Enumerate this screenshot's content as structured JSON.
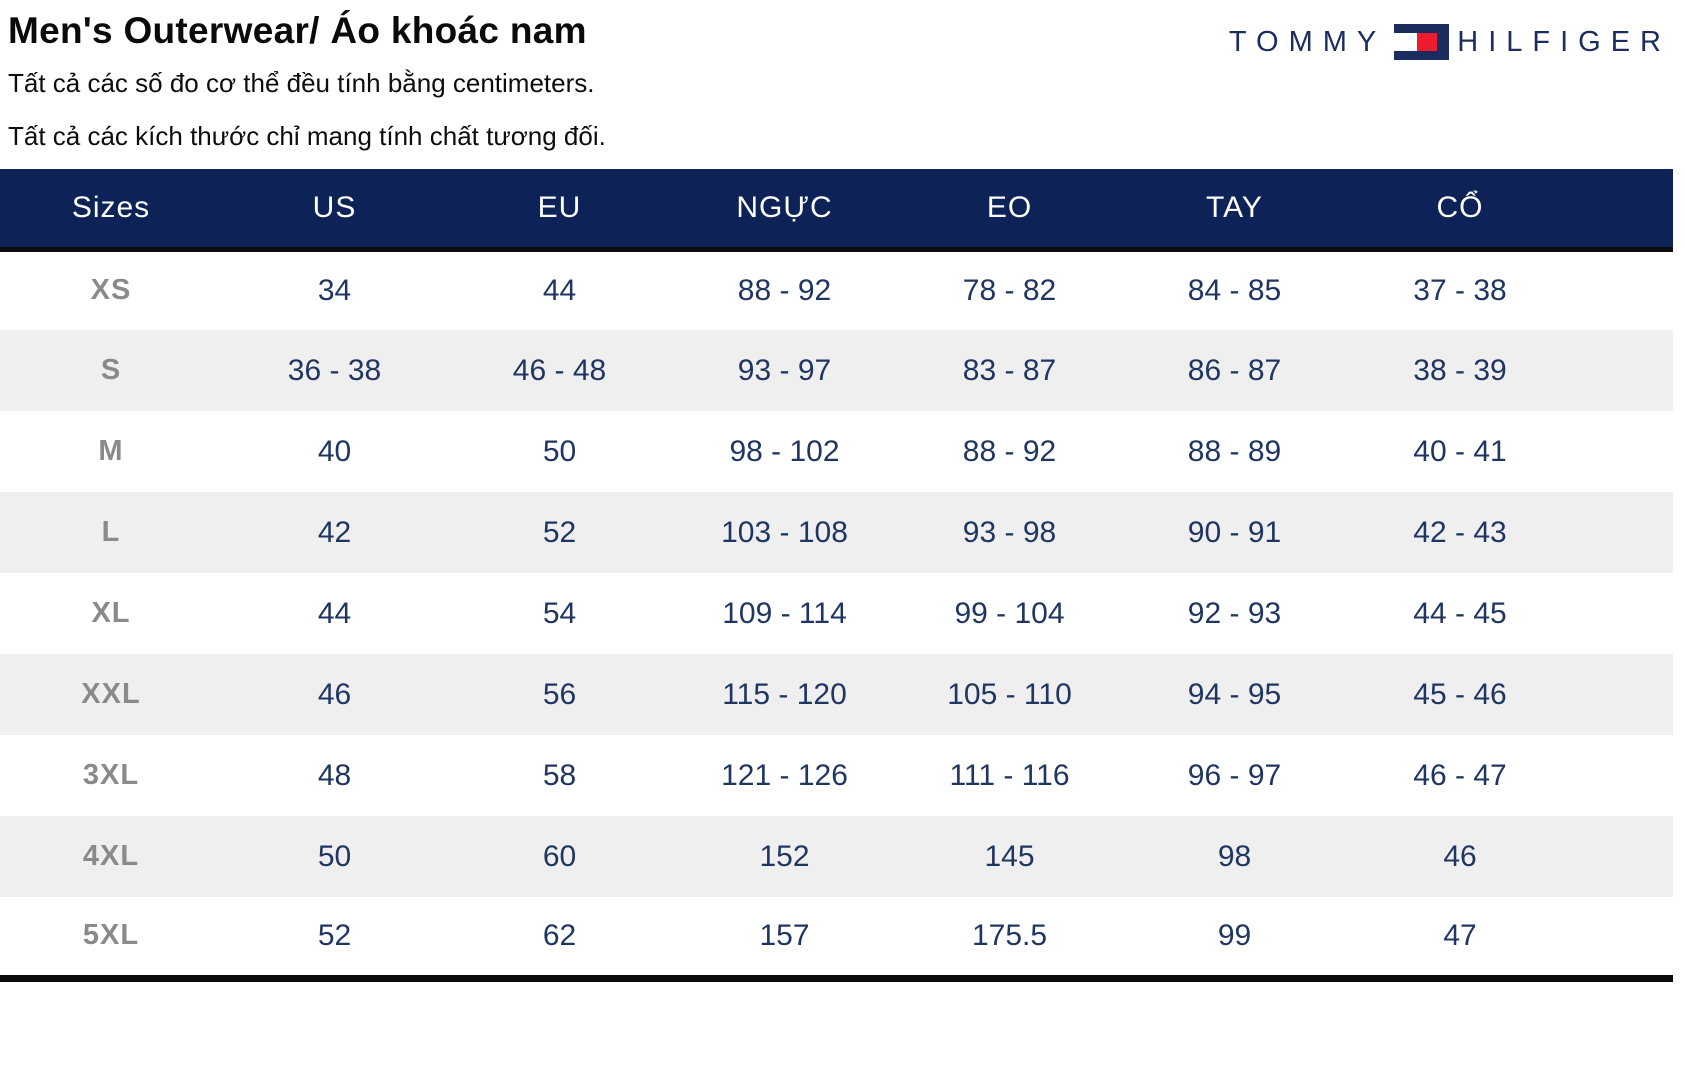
{
  "page": {
    "title": "Men's Outerwear/ Áo khoác nam",
    "subtitle1": "Tất cả các số đo cơ thể đều tính bằng centimeters.",
    "subtitle2": "Tất cả các kích thước chỉ mang tính chất tương đối."
  },
  "brand": {
    "word1": "TOMMY",
    "word2": "HILFIGER",
    "flag_icon": "tommy-hilfiger-flag-icon",
    "colors": {
      "navy": "#1b2d5e",
      "red": "#ee1c2e",
      "white": "#ffffff"
    }
  },
  "colors": {
    "header_bg": "#0d2357",
    "header_text": "#ffffff",
    "value_text": "#203662",
    "size_label_gray": "#8a8a8a",
    "row_alt_bg": "#efefef",
    "border_black": "#0c0c0c"
  },
  "table": {
    "columns": [
      "Sizes",
      "US",
      "EU",
      "NGỰC",
      "EO",
      "TAY",
      "CỔ"
    ],
    "rows": [
      {
        "size": "XS",
        "values": [
          "34",
          "44",
          "88 - 92",
          "78 - 82",
          "84 - 85",
          "37 - 38"
        ]
      },
      {
        "size": "S",
        "values": [
          "36 - 38",
          "46 - 48",
          "93 - 97",
          "83 - 87",
          "86 - 87",
          "38 - 39"
        ]
      },
      {
        "size": "M",
        "values": [
          "40",
          "50",
          "98 - 102",
          "88 - 92",
          "88 - 89",
          "40 - 41"
        ]
      },
      {
        "size": "L",
        "values": [
          "42",
          "52",
          "103 - 108",
          "93 - 98",
          "90 - 91",
          "42 - 43"
        ]
      },
      {
        "size": "XL",
        "values": [
          "44",
          "54",
          "109 - 114",
          "99 - 104",
          "92 - 93",
          "44 - 45"
        ]
      },
      {
        "size": "XXL",
        "values": [
          "46",
          "56",
          "115 - 120",
          "105 - 110",
          "94 - 95",
          "45 - 46"
        ]
      },
      {
        "size": "3XL",
        "values": [
          "48",
          "58",
          "121 - 126",
          "111 - 116",
          "96 - 97",
          "46 - 47"
        ]
      },
      {
        "size": "4XL",
        "values": [
          "50",
          "60",
          "152",
          "145",
          "98",
          "46"
        ]
      },
      {
        "size": "5XL",
        "values": [
          "52",
          "62",
          "157",
          "175.5",
          "99",
          "47"
        ]
      }
    ]
  }
}
